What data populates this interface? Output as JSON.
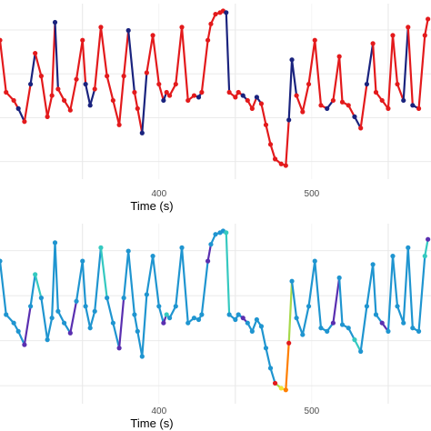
{
  "chart_data": [
    {
      "type": "line",
      "panel": "top",
      "xlabel": "Time (s)",
      "ylabel": "",
      "xlim": [
        296,
        578
      ],
      "x_ticks": [
        "400",
        "500"
      ],
      "grid": true,
      "colors": {
        "primary": "#e31a1c",
        "secondary": "#1a237e"
      },
      "x": [
        296,
        300,
        305,
        308,
        312,
        316,
        319,
        323,
        327,
        330,
        332,
        334,
        338,
        342,
        346,
        350,
        352,
        355,
        358,
        362,
        366,
        370,
        374,
        377,
        380,
        384,
        386,
        389,
        392,
        396,
        400,
        403,
        405,
        407,
        411,
        415,
        419,
        423,
        426,
        428,
        432,
        434,
        437,
        440,
        442,
        444,
        446,
        450,
        452,
        455,
        458,
        461,
        464,
        467,
        470,
        473,
        476,
        480,
        483,
        485,
        487,
        490,
        494,
        498,
        502,
        506,
        510,
        514,
        518,
        520,
        524,
        528,
        532,
        536,
        540,
        542,
        546,
        550,
        553,
        556,
        560,
        563,
        566,
        570,
        574,
        576
      ],
      "values": [
        0.82,
        0.5,
        0.45,
        0.4,
        0.32,
        0.55,
        0.74,
        0.6,
        0.35,
        0.48,
        0.93,
        0.52,
        0.45,
        0.39,
        0.58,
        0.82,
        0.55,
        0.42,
        0.52,
        0.9,
        0.6,
        0.45,
        0.3,
        0.6,
        0.88,
        0.5,
        0.4,
        0.25,
        0.62,
        0.85,
        0.55,
        0.45,
        0.5,
        0.48,
        0.55,
        0.9,
        0.45,
        0.48,
        0.47,
        0.5,
        0.82,
        0.92,
        0.98,
        0.99,
        1.0,
        0.99,
        0.5,
        0.47,
        0.5,
        0.48,
        0.45,
        0.4,
        0.47,
        0.43,
        0.3,
        0.18,
        0.09,
        0.06,
        0.05,
        0.33,
        0.7,
        0.48,
        0.38,
        0.55,
        0.82,
        0.42,
        0.4,
        0.45,
        0.72,
        0.44,
        0.42,
        0.35,
        0.28,
        0.55,
        0.8,
        0.5,
        0.45,
        0.4,
        0.85,
        0.55,
        0.45,
        0.9,
        0.42,
        0.4,
        0.85,
        0.95
      ]
    },
    {
      "type": "line",
      "panel": "bottom",
      "xlabel": "Time (s)",
      "ylabel": "",
      "xlim": [
        296,
        578
      ],
      "x_ticks": [
        "400",
        "500"
      ],
      "grid": true,
      "colors": {
        "primary": "#1f95d0",
        "accents": [
          "#5a2fb0",
          "#35c9c0",
          "#a6d84a",
          "#f2e533",
          "#ff7f00",
          "#e31a1c"
        ]
      },
      "x": [
        296,
        300,
        305,
        308,
        312,
        316,
        319,
        323,
        327,
        330,
        332,
        334,
        338,
        342,
        346,
        350,
        352,
        355,
        358,
        362,
        366,
        370,
        374,
        377,
        380,
        384,
        386,
        389,
        392,
        396,
        400,
        403,
        405,
        407,
        411,
        415,
        419,
        423,
        426,
        428,
        432,
        434,
        437,
        440,
        442,
        444,
        446,
        450,
        452,
        455,
        458,
        461,
        464,
        467,
        470,
        473,
        476,
        480,
        483,
        485,
        487,
        490,
        494,
        498,
        502,
        506,
        510,
        514,
        518,
        520,
        524,
        528,
        532,
        536,
        540,
        542,
        546,
        550,
        553,
        556,
        560,
        563,
        566,
        570,
        574,
        576
      ],
      "values": [
        0.82,
        0.5,
        0.45,
        0.4,
        0.32,
        0.55,
        0.74,
        0.6,
        0.35,
        0.48,
        0.93,
        0.52,
        0.45,
        0.39,
        0.58,
        0.82,
        0.55,
        0.42,
        0.52,
        0.9,
        0.6,
        0.45,
        0.3,
        0.6,
        0.88,
        0.5,
        0.4,
        0.25,
        0.62,
        0.85,
        0.55,
        0.45,
        0.5,
        0.48,
        0.55,
        0.9,
        0.45,
        0.48,
        0.47,
        0.5,
        0.82,
        0.92,
        0.98,
        0.99,
        1.0,
        0.99,
        0.5,
        0.47,
        0.5,
        0.48,
        0.45,
        0.4,
        0.47,
        0.43,
        0.3,
        0.18,
        0.09,
        0.06,
        0.05,
        0.33,
        0.7,
        0.48,
        0.38,
        0.55,
        0.82,
        0.42,
        0.4,
        0.45,
        0.72,
        0.44,
        0.42,
        0.35,
        0.28,
        0.55,
        0.8,
        0.5,
        0.45,
        0.4,
        0.85,
        0.55,
        0.45,
        0.9,
        0.42,
        0.4,
        0.85,
        0.95
      ]
    }
  ]
}
